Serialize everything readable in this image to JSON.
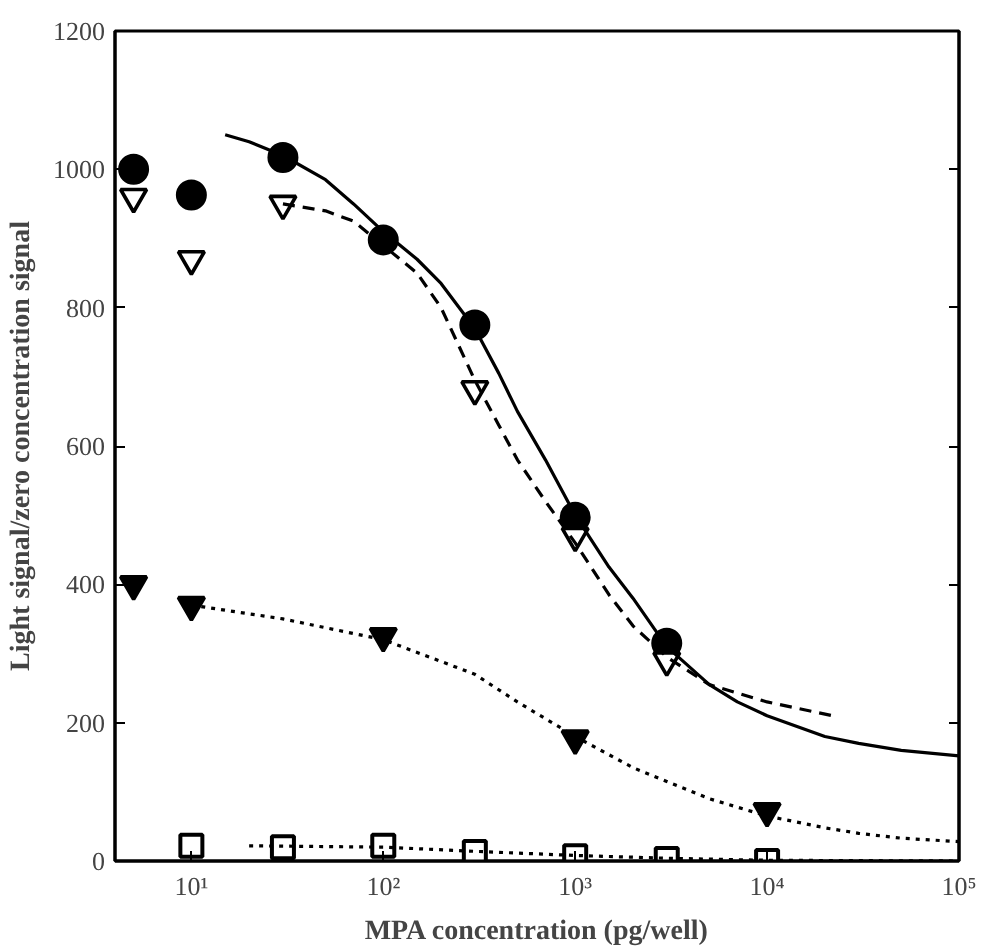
{
  "chart_data": {
    "type": "scatter",
    "xlabel": "MPA concentration (pg/well)",
    "ylabel": "Light signal/zero concentration signal",
    "log": "x",
    "grid": false,
    "xlim": [
      4,
      100000
    ],
    "ylim": [
      0,
      1200
    ],
    "xticks": [
      {
        "value": 10,
        "label": "10¹"
      },
      {
        "value": 100,
        "label": "10²"
      },
      {
        "value": 1000,
        "label": "10³"
      },
      {
        "value": 10000,
        "label": "10⁴"
      },
      {
        "value": 100000,
        "label": "10⁵"
      }
    ],
    "yticks": [
      0,
      200,
      400,
      600,
      800,
      1000,
      1200
    ],
    "series": [
      {
        "marker": "circle",
        "color": "#000000",
        "x": [
          5,
          10,
          30,
          100,
          300,
          1000,
          3000
        ],
        "values": [
          1000,
          963,
          1017,
          898,
          775,
          497,
          315
        ]
      },
      {
        "marker": "triangle",
        "color": "#ffffff",
        "x": [
          5,
          10,
          30,
          100,
          300,
          1000,
          3000
        ],
        "values": [
          960,
          870,
          950,
          null,
          682,
          470,
          290
        ]
      },
      {
        "marker": "triangle",
        "color": "#000000",
        "x": [
          5,
          10,
          100,
          1000,
          10000
        ],
        "values": [
          400,
          370,
          325,
          177,
          72
        ]
      },
      {
        "marker": "square",
        "color": "#ffffff",
        "x": [
          10,
          30,
          100,
          300,
          1000,
          3000,
          10000
        ],
        "values": [
          22,
          20,
          22,
          13,
          7,
          3,
          0
        ]
      },
      {
        "type": "line",
        "line_style": "solid",
        "marker": "none",
        "color": "#000000",
        "x": [
          15,
          20,
          30,
          50,
          70,
          100,
          150,
          200,
          300,
          400,
          500,
          700,
          1000,
          1500,
          2000,
          3000,
          5000,
          7000,
          10000,
          20000,
          30000,
          50000,
          100000
        ],
        "values": [
          1050,
          1040,
          1020,
          985,
          950,
          910,
          870,
          835,
          770,
          705,
          650,
          580,
          500,
          425,
          380,
          310,
          255,
          230,
          210,
          180,
          170,
          160,
          152
        ]
      },
      {
        "type": "line",
        "line_style": "dashed",
        "marker": "none",
        "color": "#000000",
        "x": [
          30,
          50,
          70,
          100,
          150,
          200,
          300,
          400,
          500,
          700,
          1000,
          1500,
          2000,
          3000,
          5000,
          10000,
          22000
        ],
        "values": [
          950,
          940,
          925,
          890,
          850,
          800,
          695,
          630,
          580,
          520,
          460,
          385,
          340,
          295,
          255,
          230,
          210
        ]
      },
      {
        "type": "line",
        "line_style": "dotted",
        "marker": "none",
        "color": "#000000",
        "x": [
          10,
          30,
          100,
          300,
          500,
          1000,
          2000,
          3000,
          5000,
          10000,
          20000,
          30000,
          50000,
          100000
        ],
        "values": [
          370,
          350,
          320,
          270,
          230,
          180,
          135,
          115,
          90,
          65,
          48,
          40,
          33,
          28
        ]
      },
      {
        "type": "line",
        "line_style": "dotted",
        "marker": "none",
        "color": "#000000",
        "x": [
          20,
          100,
          300,
          1000,
          3000,
          10000,
          100000
        ],
        "values": [
          22,
          20,
          14,
          8,
          4,
          1,
          0
        ]
      }
    ]
  }
}
